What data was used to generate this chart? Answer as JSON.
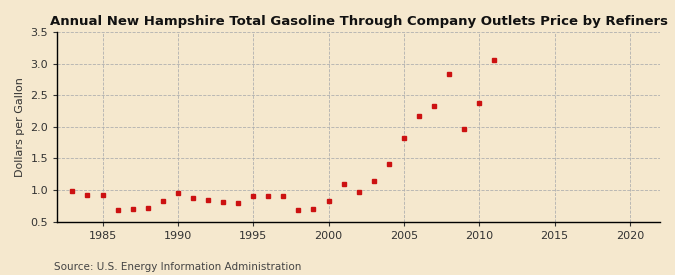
{
  "title": "Annual New Hampshire Total Gasoline Through Company Outlets Price by Refiners",
  "ylabel": "Dollars per Gallon",
  "source": "Source: U.S. Energy Information Administration",
  "background_color": "#f5e8ce",
  "marker_color": "#cc1111",
  "xlim": [
    1982,
    2022
  ],
  "ylim": [
    0.5,
    3.5
  ],
  "xticks": [
    1985,
    1990,
    1995,
    2000,
    2005,
    2010,
    2015,
    2020
  ],
  "yticks": [
    0.5,
    1.0,
    1.5,
    2.0,
    2.5,
    3.0,
    3.5
  ],
  "years": [
    1983,
    1984,
    1985,
    1986,
    1987,
    1988,
    1989,
    1990,
    1991,
    1992,
    1993,
    1994,
    1995,
    1996,
    1997,
    1998,
    1999,
    2000,
    2001,
    2002,
    2003,
    2004,
    2005,
    2006,
    2007,
    2008,
    2009,
    2010,
    2011
  ],
  "values": [
    0.98,
    0.92,
    0.93,
    0.68,
    0.7,
    0.72,
    0.83,
    0.95,
    0.87,
    0.84,
    0.81,
    0.79,
    0.9,
    0.9,
    0.9,
    0.68,
    0.7,
    0.82,
    1.09,
    0.97,
    1.15,
    1.42,
    1.82,
    2.17,
    2.33,
    2.84,
    1.97,
    2.37,
    3.05
  ],
  "title_fontsize": 9.5,
  "ylabel_fontsize": 8,
  "tick_fontsize": 8,
  "source_fontsize": 7.5
}
